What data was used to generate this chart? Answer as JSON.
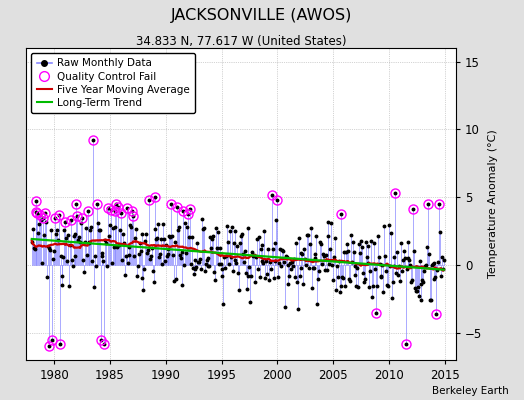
{
  "title": "JACKSONVILLE (AWOS)",
  "subtitle": "34.833 N, 77.617 W (United States)",
  "ylabel": "Temperature Anomaly (°C)",
  "attribution": "Berkeley Earth",
  "xlim": [
    1977.5,
    2016.0
  ],
  "ylim": [
    -7,
    16
  ],
  "yticks": [
    -5,
    0,
    5,
    10,
    15
  ],
  "xticks": [
    1980,
    1985,
    1990,
    1995,
    2000,
    2005,
    2010,
    2015
  ],
  "fig_bg_color": "#e0e0e0",
  "plot_bg_color": "#ffffff",
  "stem_color": "#8888ff",
  "dot_color": "#000000",
  "fail_color": "#ff00ff",
  "moving_avg_color": "#cc0000",
  "trend_color": "#00bb00",
  "seed": 12345
}
